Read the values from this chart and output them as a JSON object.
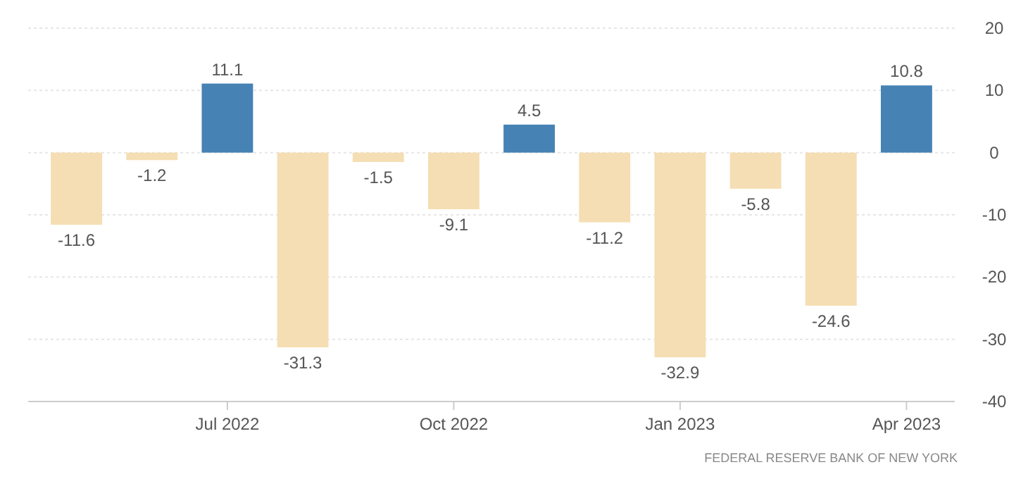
{
  "chart_data": {
    "type": "bar",
    "categories": [
      null,
      null,
      "Jul 2022",
      null,
      null,
      "Oct 2022",
      null,
      null,
      "Jan 2023",
      null,
      null,
      "Apr 2023"
    ],
    "values": [
      -11.6,
      -1.2,
      11.1,
      -31.3,
      -1.5,
      -9.1,
      4.5,
      -11.2,
      -32.9,
      -5.8,
      -24.6,
      10.8
    ],
    "colors": [
      "#f5deb3",
      "#f5deb3",
      "#4682b4",
      "#f5deb3",
      "#f5deb3",
      "#f5deb3",
      "#4682b4",
      "#f5deb3",
      "#f5deb3",
      "#f5deb3",
      "#f5deb3",
      "#4682b4"
    ],
    "ylim": [
      -40,
      20
    ],
    "yticks": [
      -40,
      -30,
      -20,
      -10,
      0,
      10,
      20
    ],
    "grid": "y",
    "data_labels": true,
    "annotations": [
      "FEDERAL RESERVE BANK OF NEW YORK"
    ]
  }
}
